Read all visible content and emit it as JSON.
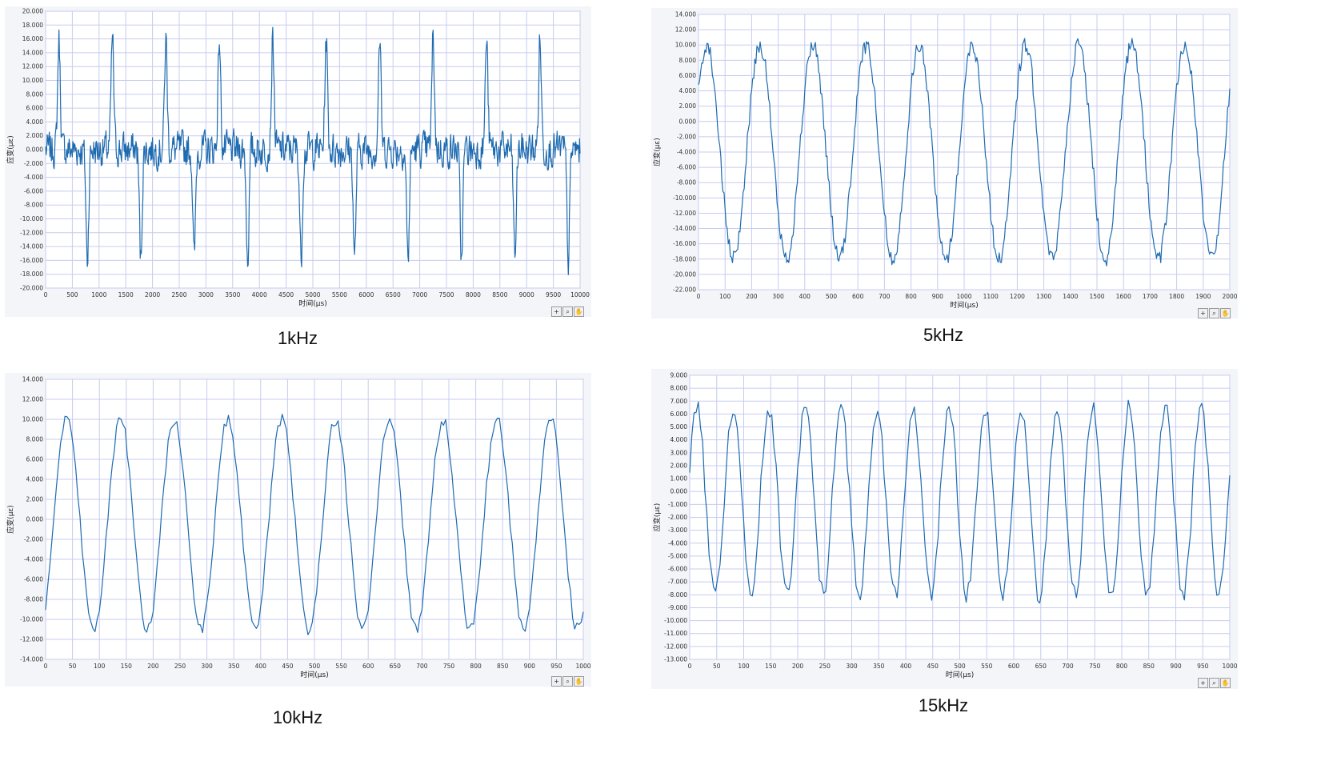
{
  "colors": {
    "line": "#1f6bb0",
    "grid": "#c7cbf0",
    "panel_bg": "#f4f5f8",
    "plot_bg": "#ffffff"
  },
  "chart_data": [
    {
      "type": "line",
      "caption": "1kHz",
      "xlabel": "时间(μs)",
      "ylabel": "应变(με)",
      "xlim": [
        0,
        10000
      ],
      "ylim": [
        -20000,
        20000
      ],
      "x_ticks": [
        0,
        500,
        1000,
        1500,
        2000,
        2500,
        3000,
        3500,
        4000,
        4500,
        5000,
        5500,
        6000,
        6500,
        7000,
        7500,
        8000,
        8500,
        9000,
        9500,
        10000
      ],
      "y_ticks": [
        20000,
        18000,
        16000,
        14000,
        12000,
        10000,
        8000,
        6000,
        4000,
        2000,
        0,
        -2000,
        -4000,
        -6000,
        -8000,
        -10000,
        -12000,
        -14000,
        -16000,
        -18000,
        -20000
      ],
      "y_tick_labels": [
        "20.000",
        "18.000",
        "16.000",
        "14.000",
        "12.000",
        "10.000",
        "8.000",
        "6.000",
        "4.000",
        "2.000",
        "0.000",
        "-2.000",
        "-4.000",
        "-6.000",
        "-8.000",
        "-10.000",
        "-12.000",
        "-14.000",
        "-16.000",
        "-18.000",
        "-20.000"
      ],
      "grid": true,
      "series": [
        {
          "signal_frequency_hz": 1000,
          "amplitude_pos": 16000,
          "amplitude_neg": -16000,
          "noise": 2500,
          "sample_step": 10
        }
      ]
    },
    {
      "type": "line",
      "caption": "5kHz",
      "xlabel": "时间(μs)",
      "ylabel": "应变(με)",
      "xlim": [
        0,
        2000
      ],
      "ylim": [
        -22000,
        14000
      ],
      "x_ticks": [
        0,
        100,
        200,
        300,
        400,
        500,
        600,
        700,
        800,
        900,
        1000,
        1100,
        1200,
        1300,
        1400,
        1500,
        1600,
        1700,
        1800,
        1900,
        2000
      ],
      "y_ticks": [
        14000,
        12000,
        10000,
        8000,
        6000,
        4000,
        2000,
        0,
        -2000,
        -4000,
        -6000,
        -8000,
        -10000,
        -12000,
        -14000,
        -16000,
        -18000,
        -20000,
        -22000
      ],
      "y_tick_labels": [
        "14.000",
        "12.000",
        "10.000",
        "8.000",
        "6.000",
        "4.000",
        "2.000",
        "0.000",
        "-2.000",
        "-4.000",
        "-6.000",
        "-8.000",
        "-10.000",
        "-12.000",
        "-14.000",
        "-16.000",
        "-18.000",
        "-20.000",
        "-22.000"
      ],
      "grid": true,
      "series": [
        {
          "signal_frequency_hz": 5000,
          "amplitude_pos": 10000,
          "amplitude_neg": -18000,
          "noise": 1800,
          "sample_step": 4
        }
      ]
    },
    {
      "type": "line",
      "caption": "10kHz",
      "xlabel": "时间(μs)",
      "ylabel": "应变(με)",
      "xlim": [
        0,
        1000
      ],
      "ylim": [
        -14000,
        14000
      ],
      "x_ticks": [
        0,
        50,
        100,
        150,
        200,
        250,
        300,
        350,
        400,
        450,
        500,
        550,
        600,
        650,
        700,
        750,
        800,
        850,
        900,
        950,
        1000
      ],
      "y_ticks": [
        14000,
        12000,
        10000,
        8000,
        6000,
        4000,
        2000,
        0,
        -2000,
        -4000,
        -6000,
        -8000,
        -10000,
        -12000,
        -14000
      ],
      "y_tick_labels": [
        "14.000",
        "12.000",
        "10.000",
        "8.000",
        "6.000",
        "4.000",
        "2.000",
        "0.000",
        "-2.000",
        "-4.000",
        "-6.000",
        "-8.000",
        "-10.000",
        "-12.000",
        "-14.000"
      ],
      "grid": true,
      "series": [
        {
          "signal_frequency_hz": 10000,
          "amplitude_pos": 10000,
          "amplitude_neg": -11000,
          "noise": 1000,
          "sample_step": 4
        }
      ]
    },
    {
      "type": "line",
      "caption": "15kHz",
      "xlabel": "时间(μs)",
      "ylabel": "应变(με)",
      "xlim": [
        0,
        1000
      ],
      "ylim": [
        -13000,
        9000
      ],
      "x_ticks": [
        0,
        50,
        100,
        150,
        200,
        250,
        300,
        350,
        400,
        450,
        500,
        550,
        600,
        650,
        700,
        750,
        800,
        850,
        900,
        950,
        1000
      ],
      "y_ticks": [
        9000,
        8000,
        7000,
        6000,
        5000,
        4000,
        3000,
        2000,
        1000,
        0,
        -1000,
        -2000,
        -3000,
        -4000,
        -5000,
        -6000,
        -7000,
        -8000,
        -9000,
        -10000,
        -11000,
        -12000,
        -13000
      ],
      "y_tick_labels": [
        "9.000",
        "8.000",
        "7.000",
        "6.000",
        "5.000",
        "4.000",
        "3.000",
        "2.000",
        "1.000",
        "0.000",
        "-1.000",
        "-2.000",
        "-3.000",
        "-4.000",
        "-5.000",
        "-6.000",
        "-7.000",
        "-8.000",
        "-9.000",
        "-10.000",
        "-11.000",
        "-12.000",
        "-13.000"
      ],
      "grid": true,
      "series": [
        {
          "signal_frequency_hz": 15000,
          "amplitude_pos": 6500,
          "amplitude_neg": -8000,
          "noise": 1200,
          "sample_step": 4
        }
      ]
    }
  ]
}
